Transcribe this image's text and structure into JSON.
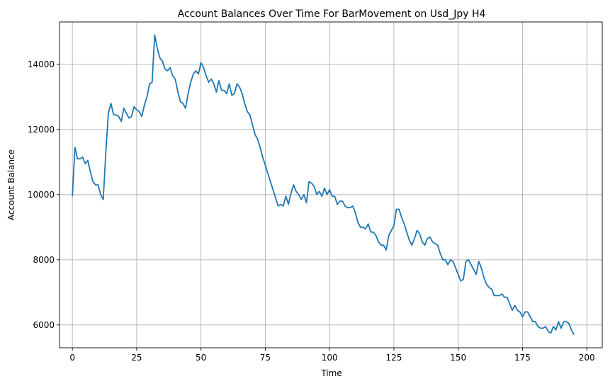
{
  "chart_data": {
    "type": "line",
    "title": "Account Balances Over Time For BarMovement on Usd_Jpy H4",
    "xlabel": "Time",
    "ylabel": "Account Balance",
    "xlim": [
      -5,
      206
    ],
    "ylim": [
      5300,
      15300
    ],
    "xticks": [
      0,
      25,
      50,
      75,
      100,
      125,
      150,
      175,
      200
    ],
    "yticks": [
      6000,
      8000,
      10000,
      12000,
      14000
    ],
    "grid": true,
    "line_color": "#1f77b4",
    "series": [
      {
        "values": [
          9950,
          11450,
          11100,
          11100,
          11150,
          10950,
          11050,
          10700,
          10400,
          10300,
          10300,
          10000,
          9850,
          11300,
          12500,
          12800,
          12450,
          12450,
          12400,
          12250,
          12650,
          12500,
          12350,
          12400,
          12700,
          12600,
          12550,
          12400,
          12750,
          13000,
          13400,
          13450,
          14900,
          14500,
          14200,
          14100,
          13850,
          13800,
          13900,
          13650,
          13550,
          13150,
          12850,
          12800,
          12650,
          13100,
          13450,
          13700,
          13800,
          13700,
          14050,
          13900,
          13650,
          13450,
          13550,
          13400,
          13150,
          13500,
          13200,
          13200,
          13100,
          13400,
          13050,
          13100,
          13400,
          13300,
          13100,
          12800,
          12550,
          12450,
          12150,
          11850,
          11700,
          11450,
          11150,
          10900,
          10650,
          10400,
          10150,
          9900,
          9650,
          9700,
          9650,
          9950,
          9700,
          10050,
          10300,
          10100,
          10000,
          9850,
          10000,
          9750,
          10400,
          10350,
          10250,
          10000,
          10100,
          9950,
          10200,
          10000,
          10150,
          9950,
          9950,
          9700,
          9800,
          9800,
          9650,
          9600,
          9600,
          9650,
          9450,
          9150,
          9000,
          9000,
          8950,
          9100,
          8850,
          8850,
          8750,
          8550,
          8450,
          8450,
          8300,
          8750,
          8900,
          9050,
          9550,
          9550,
          9300,
          9100,
          8850,
          8600,
          8450,
          8650,
          8900,
          8800,
          8550,
          8450,
          8650,
          8700,
          8550,
          8500,
          8450,
          8200,
          8000,
          8000,
          7850,
          8000,
          7950,
          7750,
          7550,
          7350,
          7400,
          7950,
          8000,
          7850,
          7700,
          7550,
          7950,
          7750,
          7450,
          7250,
          7150,
          7100,
          6900,
          6900,
          6900,
          6950,
          6850,
          6850,
          6650,
          6450,
          6600,
          6450,
          6400,
          6250,
          6400,
          6400,
          6250,
          6100,
          6100,
          5950,
          5900,
          5900,
          5950,
          5800,
          5750,
          5950,
          5850,
          6100,
          5900,
          6100,
          6100,
          6050,
          5850,
          5700
        ]
      }
    ]
  }
}
